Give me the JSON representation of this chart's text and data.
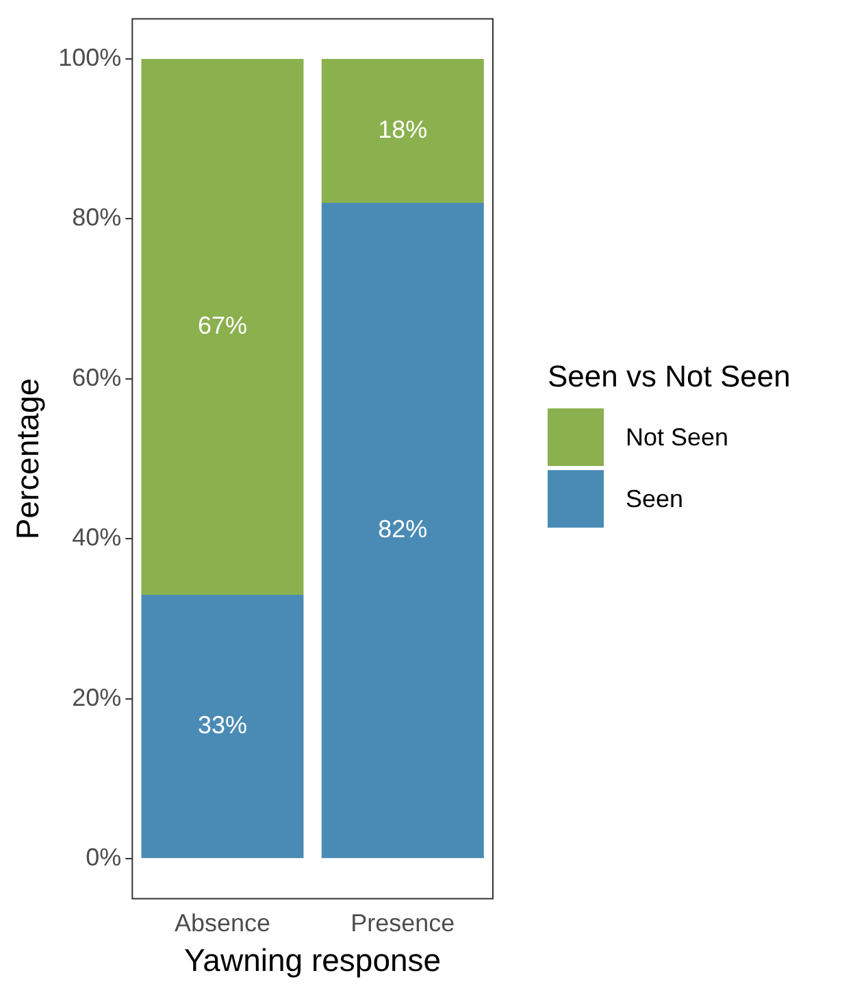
{
  "chart_data": {
    "type": "bar",
    "stacked": true,
    "xlabel": "Yawning response",
    "ylabel": "Percentage",
    "legend_title": "Seen vs Not Seen",
    "legend": "right",
    "grid": false,
    "categories": [
      "Absence",
      "Presence"
    ],
    "series": [
      {
        "name": "Seen",
        "color": "#4a8bb5",
        "values": [
          33,
          82
        ],
        "value_labels": [
          "33%",
          "82%"
        ]
      },
      {
        "name": "Not Seen",
        "color": "#8bb04e",
        "values": [
          67,
          18
        ],
        "value_labels": [
          "67%",
          "18%"
        ]
      }
    ],
    "ylim": [
      -5,
      105
    ],
    "yticks": [
      {
        "value": 0,
        "label": "0%"
      },
      {
        "value": 20,
        "label": "20%"
      },
      {
        "value": 40,
        "label": "40%"
      },
      {
        "value": 60,
        "label": "60%"
      },
      {
        "value": 80,
        "label": "80%"
      },
      {
        "value": 100,
        "label": "100%"
      }
    ]
  }
}
